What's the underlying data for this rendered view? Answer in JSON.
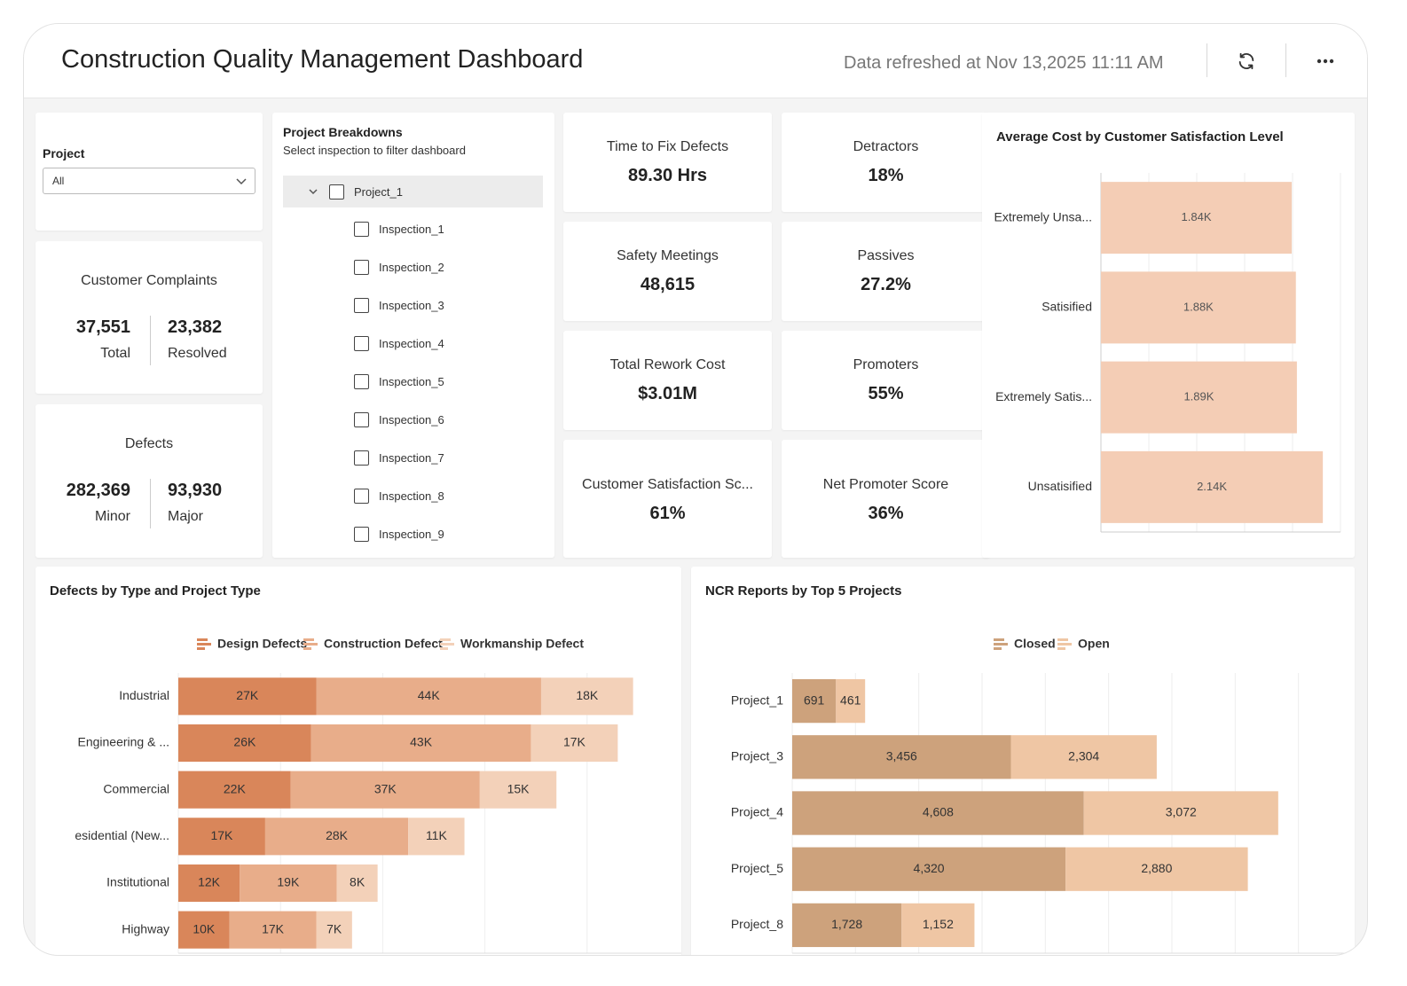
{
  "header": {
    "title": "Construction Quality Management Dashboard",
    "refresh_text": "Data refreshed at Nov 13,2025 11:11 AM"
  },
  "filter": {
    "label": "Project",
    "value": "All"
  },
  "complaints": {
    "title": "Customer Complaints",
    "total": "37,551",
    "total_label": "Total",
    "resolved": "23,382",
    "resolved_label": "Resolved"
  },
  "defects": {
    "title": "Defects",
    "minor": "282,369",
    "minor_label": "Minor",
    "major": "93,930",
    "major_label": "Major"
  },
  "breakdown": {
    "title": "Project Breakdowns",
    "subtitle": "Select inspection to filter dashboard",
    "project": "Project_1",
    "inspections": [
      "Inspection_1",
      "Inspection_2",
      "Inspection_3",
      "Inspection_4",
      "Inspection_5",
      "Inspection_6",
      "Inspection_7",
      "Inspection_8",
      "Inspection_9"
    ]
  },
  "kpis": [
    {
      "title": "Time to Fix Defects",
      "value": "89.30 Hrs"
    },
    {
      "title": "Detractors",
      "value": "18%"
    },
    {
      "title": "Safety Meetings",
      "value": "48,615"
    },
    {
      "title": "Passives",
      "value": "27.2%"
    },
    {
      "title": "Total Rework Cost",
      "value": "$3.01M"
    },
    {
      "title": "Promoters",
      "value": "55%"
    },
    {
      "title": "Customer Satisfaction Sc...",
      "value": "61%"
    },
    {
      "title": "Net Promoter Score",
      "value": "36%"
    }
  ],
  "chart_data": [
    {
      "type": "bar",
      "orientation": "horizontal",
      "title": "Average Cost by Customer Satisfaction Level",
      "categories": [
        "Extremely Unsa...",
        "Satisified",
        "Extremely Satis...",
        "Unsatisified"
      ],
      "values": [
        1840,
        1880,
        1890,
        2140
      ],
      "data_labels": [
        "1.84K",
        "1.88K",
        "1.89K",
        "2.14K"
      ],
      "xlim": [
        0,
        2310
      ],
      "grid": true,
      "color": "#f4cdb5"
    },
    {
      "type": "bar",
      "orientation": "horizontal",
      "stacked": true,
      "title": "Defects by Type and Project Type",
      "categories": [
        "Industrial",
        "Engineering & ...",
        "Commercial",
        "esidential (New...",
        "Institutional",
        "Highway"
      ],
      "series": [
        {
          "name": "Design Defects",
          "values": [
            27000,
            26000,
            22000,
            17000,
            12000,
            10000
          ],
          "labels": [
            "27K",
            "26K",
            "22K",
            "17K",
            "12K",
            "10K"
          ],
          "color": "#d9865a"
        },
        {
          "name": "Construction Defect",
          "values": [
            44000,
            43000,
            37000,
            28000,
            19000,
            17000
          ],
          "labels": [
            "44K",
            "43K",
            "37K",
            "28K",
            "19K",
            "17K"
          ],
          "color": "#e8ad8a"
        },
        {
          "name": "Workmanship Defect",
          "values": [
            18000,
            17000,
            15000,
            11000,
            8000,
            7000
          ],
          "labels": [
            "18K",
            "17K",
            "15K",
            "11K",
            "8K",
            "7K"
          ],
          "color": "#f3d1b9"
        }
      ],
      "xlim": [
        0,
        100000
      ],
      "grid": true,
      "legend": "top"
    },
    {
      "type": "bar",
      "orientation": "horizontal",
      "stacked": true,
      "title": "NCR Reports by Top 5 Projects",
      "categories": [
        "Project_1",
        "Project_3",
        "Project_4",
        "Project_5",
        "Project_8"
      ],
      "series": [
        {
          "name": "Closed",
          "values": [
            691,
            3456,
            4608,
            4320,
            1728
          ],
          "labels": [
            "691",
            "3,456",
            "4,608",
            "4,320",
            "1,728"
          ],
          "color": "#cda27c"
        },
        {
          "name": "Open",
          "values": [
            461,
            2304,
            3072,
            2880,
            1152
          ],
          "labels": [
            "461",
            "2,304",
            "3,072",
            "2,880",
            "1,152"
          ],
          "color": "#efc6a4"
        }
      ],
      "xlim": [
        0,
        9000
      ],
      "grid": true,
      "legend": "top"
    }
  ]
}
